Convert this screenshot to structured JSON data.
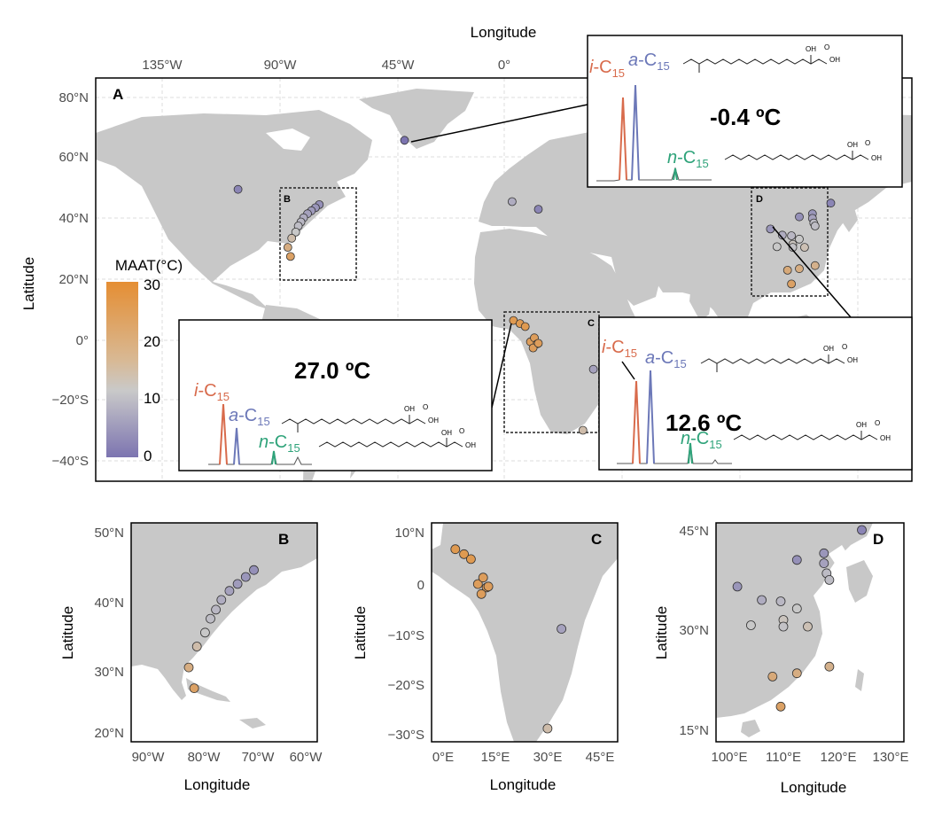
{
  "main_map": {
    "panel_label": "A",
    "xlabel": "Longitude",
    "ylabel": "Latitude",
    "x_ticks": [
      "135°W",
      "90°W",
      "45°W",
      "0°"
    ],
    "y_ticks": [
      "80°N",
      "60°N",
      "40°N",
      "20°N",
      "0°",
      "−20°S",
      "−40°S"
    ],
    "region_labels": [
      "B",
      "C",
      "D"
    ]
  },
  "colorbar": {
    "title": "MAAT(°C)",
    "ticks": [
      "30",
      "20",
      "10",
      "0"
    ],
    "color_high": "#e58e33",
    "color_mid": "#c8c8c8",
    "color_low": "#7c74b0"
  },
  "insets": [
    {
      "temperature": "-0.4 ºC",
      "peaks": [
        {
          "name": "i-C15",
          "prefix": "i",
          "base": "-C",
          "sub": "15",
          "color": "#d86b4c"
        },
        {
          "name": "a-C15",
          "prefix": "a",
          "base": "-C",
          "sub": "15",
          "color": "#6c78b8"
        },
        {
          "name": "n-C15",
          "prefix": "n",
          "base": "-C",
          "sub": "15",
          "color": "#2fa37a"
        }
      ],
      "oh_label": "OH",
      "acid_label": "OH",
      "o_label": "O"
    },
    {
      "temperature": "27.0 ºC",
      "peaks": [
        {
          "name": "i-C15",
          "prefix": "i",
          "base": "-C",
          "sub": "15",
          "color": "#d86b4c"
        },
        {
          "name": "a-C15",
          "prefix": "a",
          "base": "-C",
          "sub": "15",
          "color": "#6c78b8"
        },
        {
          "name": "n-C15",
          "prefix": "n",
          "base": "-C",
          "sub": "15",
          "color": "#2fa37a"
        }
      ],
      "oh_label": "OH",
      "acid_label": "OH",
      "o_label": "O"
    },
    {
      "temperature": "12.6 ºC",
      "peaks": [
        {
          "name": "i-C15",
          "prefix": "i",
          "base": "-C",
          "sub": "15",
          "color": "#d86b4c"
        },
        {
          "name": "a-C15",
          "prefix": "a",
          "base": "-C",
          "sub": "15",
          "color": "#6c78b8"
        },
        {
          "name": "n-C15",
          "prefix": "n",
          "base": "-C",
          "sub": "15",
          "color": "#2fa37a"
        }
      ],
      "oh_label": "OH",
      "acid_label": "OH",
      "o_label": "O"
    }
  ],
  "panel_b": {
    "label": "B",
    "xlabel": "Longitude",
    "ylabel": "Latitude",
    "x_ticks": [
      "90°W",
      "80°W",
      "70°W",
      "60°W"
    ],
    "y_ticks": [
      "50°N",
      "40°N",
      "30°N",
      "20°N"
    ]
  },
  "panel_c": {
    "label": "C",
    "xlabel": "Longitude",
    "ylabel": "Latitude",
    "x_ticks": [
      "0°E",
      "15°E",
      "30°E",
      "45°E"
    ],
    "y_ticks": [
      "10°N",
      "0",
      "−10°S",
      "−20°S",
      "−30°S"
    ]
  },
  "panel_d": {
    "label": "D",
    "xlabel": "Longitude",
    "ylabel": "Latitude",
    "x_ticks": [
      "100°E",
      "110°E",
      "120°E",
      "130°E"
    ],
    "y_ticks": [
      "45°N",
      "30°N",
      "15°N"
    ]
  },
  "sites": [
    {
      "lon": -101.5,
      "lat": 49.5,
      "maat": 3
    },
    {
      "lon": -70.5,
      "lat": 44.5,
      "maat": 5
    },
    {
      "lon": -72,
      "lat": 43.5,
      "maat": 6
    },
    {
      "lon": -73.5,
      "lat": 42.5,
      "maat": 7
    },
    {
      "lon": -75,
      "lat": 41.5,
      "maat": 8
    },
    {
      "lon": -76.5,
      "lat": 40.2,
      "maat": 10
    },
    {
      "lon": -77.5,
      "lat": 38.8,
      "maat": 12
    },
    {
      "lon": -78.5,
      "lat": 37.5,
      "maat": 13
    },
    {
      "lon": -79.5,
      "lat": 35.5,
      "maat": 15
    },
    {
      "lon": -81,
      "lat": 33.5,
      "maat": 18
    },
    {
      "lon": -82.5,
      "lat": 30.5,
      "maat": 22
    },
    {
      "lon": -81.5,
      "lat": 27.5,
      "maat": 25
    },
    {
      "lon": -38,
      "lat": 65.6,
      "maat": -0.4
    },
    {
      "lon": 3,
      "lat": 45.5,
      "maat": 10
    },
    {
      "lon": 13,
      "lat": 43,
      "maat": 3
    },
    {
      "lon": 3.5,
      "lat": 6.5,
      "maat": 27
    },
    {
      "lon": 6,
      "lat": 5.5,
      "maat": 27
    },
    {
      "lon": 8,
      "lat": 4.5,
      "maat": 27
    },
    {
      "lon": 10,
      "lat": -0.5,
      "maat": 26
    },
    {
      "lon": 11.5,
      "lat": 0.8,
      "maat": 26
    },
    {
      "lon": 12.5,
      "lat": -1.2,
      "maat": 26
    },
    {
      "lon": 11,
      "lat": -2.5,
      "maat": 26
    },
    {
      "lon": 13,
      "lat": -1,
      "maat": 26
    },
    {
      "lon": 34,
      "lat": -9.5,
      "maat": 8
    },
    {
      "lon": 30,
      "lat": -29.5,
      "maat": 18
    },
    {
      "lon": 101.5,
      "lat": 36.5,
      "maat": 6
    },
    {
      "lon": 106,
      "lat": 34.5,
      "maat": 10
    },
    {
      "lon": 104,
      "lat": 30.7,
      "maat": 15
    },
    {
      "lon": 109.5,
      "lat": 34.3,
      "maat": 12
    },
    {
      "lon": 110,
      "lat": 31.5,
      "maat": 16
    },
    {
      "lon": 110,
      "lat": 30.5,
      "maat": 14
    },
    {
      "lon": 112.5,
      "lat": 33.2,
      "maat": 15
    },
    {
      "lon": 114.5,
      "lat": 30.5,
      "maat": 17
    },
    {
      "lon": 112.5,
      "lat": 40.5,
      "maat": 5
    },
    {
      "lon": 117.5,
      "lat": 41.5,
      "maat": 6
    },
    {
      "lon": 117.5,
      "lat": 40,
      "maat": 8
    },
    {
      "lon": 118,
      "lat": 38.5,
      "maat": 12.6
    },
    {
      "lon": 118.5,
      "lat": 37.5,
      "maat": 13
    },
    {
      "lon": 124.5,
      "lat": 45,
      "maat": 3
    },
    {
      "lon": 108,
      "lat": 23,
      "maat": 23
    },
    {
      "lon": 112.5,
      "lat": 23.5,
      "maat": 22
    },
    {
      "lon": 118.5,
      "lat": 24.5,
      "maat": 21
    },
    {
      "lon": 109.5,
      "lat": 18.5,
      "maat": 25
    }
  ]
}
